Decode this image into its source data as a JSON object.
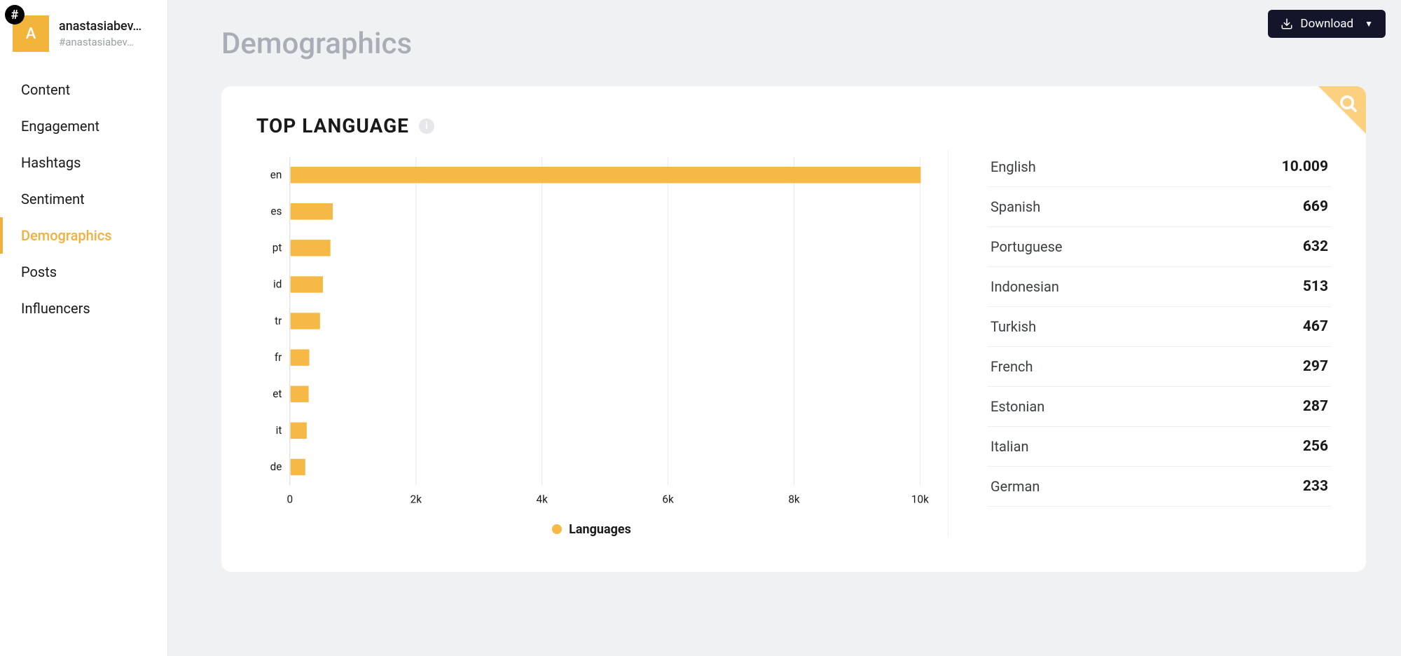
{
  "colors": {
    "accent": "#eeb13d",
    "bar": "#f6b946",
    "cardCorner": "#fbd07e",
    "pageTitle": "#a9aeb6",
    "text": "#1a1a1a",
    "muted": "#9aa0a6",
    "grid": "#e6e7ea",
    "baseline": "#cfd2d7",
    "border": "#eceef1",
    "downloadBg": "#14152b",
    "background": "#f0f1f3",
    "infoBg": "#e6e7ea"
  },
  "profile": {
    "avatar_letter": "A",
    "name": "anastasiabev…",
    "tag": "#anastasiabev…"
  },
  "nav": {
    "items": [
      "Content",
      "Engagement",
      "Hashtags",
      "Sentiment",
      "Demographics",
      "Posts",
      "Influencers"
    ],
    "active_index": 4
  },
  "header": {
    "page_title": "Demographics",
    "download_label": "Download"
  },
  "card": {
    "title": "TOP LANGUAGE"
  },
  "chart": {
    "type": "horizontal-bar",
    "x_max": 10000,
    "x_ticks": [
      0,
      2000,
      4000,
      6000,
      8000,
      10000
    ],
    "x_tick_labels": [
      "0",
      "2k",
      "4k",
      "6k",
      "8k",
      "10k"
    ],
    "legend_label": "Languages",
    "bar_color": "#f6b946",
    "grid_color": "#e6e7ea",
    "axis_text_color": "#1a1a1a",
    "bars": [
      {
        "code": "en",
        "value": 10009
      },
      {
        "code": "es",
        "value": 669
      },
      {
        "code": "pt",
        "value": 632
      },
      {
        "code": "id",
        "value": 513
      },
      {
        "code": "tr",
        "value": 467
      },
      {
        "code": "fr",
        "value": 297
      },
      {
        "code": "et",
        "value": 287
      },
      {
        "code": "it",
        "value": 256
      },
      {
        "code": "de",
        "value": 233
      }
    ]
  },
  "list": {
    "rows": [
      {
        "label": "English",
        "value": "10.009"
      },
      {
        "label": "Spanish",
        "value": "669"
      },
      {
        "label": "Portuguese",
        "value": "632"
      },
      {
        "label": "Indonesian",
        "value": "513"
      },
      {
        "label": "Turkish",
        "value": "467"
      },
      {
        "label": "French",
        "value": "297"
      },
      {
        "label": "Estonian",
        "value": "287"
      },
      {
        "label": "Italian",
        "value": "256"
      },
      {
        "label": "German",
        "value": "233"
      }
    ]
  }
}
